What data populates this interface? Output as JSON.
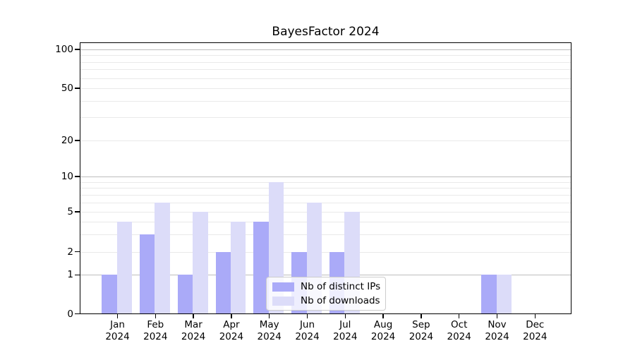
{
  "chart_data": {
    "type": "bar",
    "title": "BayesFactor 2024",
    "categories": [
      "Jan",
      "Feb",
      "Mar",
      "Apr",
      "May",
      "Jun",
      "Jul",
      "Aug",
      "Sep",
      "Oct",
      "Nov",
      "Dec"
    ],
    "x_tick_year": "2024",
    "series": [
      {
        "name": "Nb of distinct IPs",
        "color": "#aaaaf8",
        "values": [
          1,
          3,
          1,
          2,
          4,
          2,
          2,
          0,
          0,
          0,
          1,
          0
        ]
      },
      {
        "name": "Nb of downloads",
        "color": "#dcdcf9",
        "values": [
          4,
          6,
          5,
          4,
          9,
          6,
          5,
          0,
          0,
          0,
          1,
          0
        ]
      }
    ],
    "y_axis": {
      "scale": "symlog",
      "tick_labels": [
        100,
        50,
        20,
        10,
        5,
        2,
        1,
        0
      ],
      "major_gridlines": [
        1,
        10,
        100
      ],
      "minor_gridlines": [
        2,
        3,
        4,
        5,
        6,
        7,
        8,
        9,
        20,
        30,
        40,
        50,
        60,
        70,
        80,
        90
      ],
      "ylim": [
        0,
        113
      ]
    },
    "legend": {
      "position": "lower center",
      "items": [
        "Nb of distinct IPs",
        "Nb of downloads"
      ]
    },
    "grid": "on"
  }
}
